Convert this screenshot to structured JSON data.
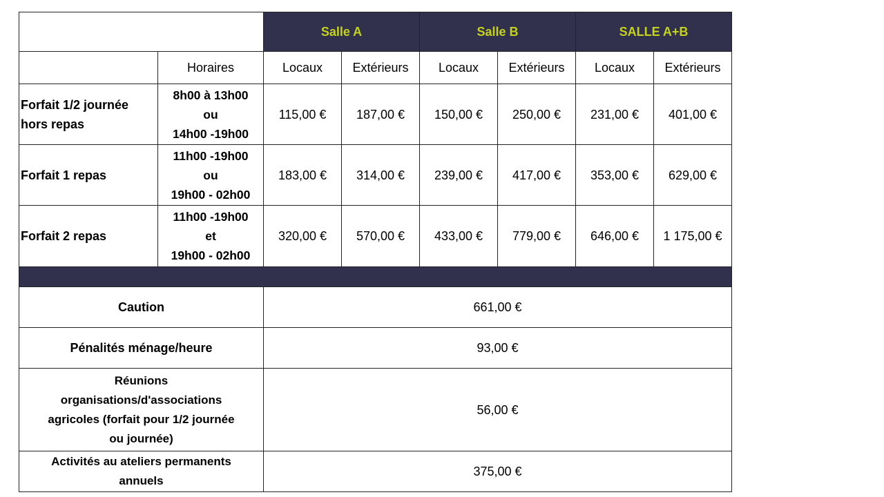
{
  "header": {
    "rooms": [
      "Salle A",
      "Salle B",
      "SALLE  A+B"
    ],
    "horaires_label": "Horaires",
    "sub": [
      "Locaux",
      "Extérieurs",
      "Locaux",
      "Extérieurs",
      "Locaux",
      "Extérieurs"
    ]
  },
  "rows": [
    {
      "label": "Forfait 1/2 journée\nhors repas",
      "horaires": "8h00 à 13h00\nou\n14h00 -19h00",
      "prices": [
        "115,00 €",
        "187,00 €",
        "150,00 €",
        "250,00 €",
        "231,00 €",
        "401,00 €"
      ]
    },
    {
      "label": "Forfait 1 repas",
      "horaires": "11h00 -19h00\nou\n19h00 - 02h00",
      "prices": [
        "183,00 €",
        "314,00 €",
        "239,00 €",
        "417,00 €",
        "353,00 €",
        "629,00 €"
      ]
    },
    {
      "label": "Forfait 2 repas",
      "horaires": "11h00 -19h00\net\n19h00 - 02h00",
      "prices": [
        "320,00 €",
        "570,00 €",
        "433,00 €",
        "779,00 €",
        "646,00 €",
        "1 175,00 €"
      ]
    }
  ],
  "extras": [
    {
      "label": "Caution",
      "value": "661,00 €"
    },
    {
      "label": "Pénalités ménage/heure",
      "value": "93,00 €"
    },
    {
      "label": "Réunions\norganisations/d'associations\nagricoles (forfait pour 1/2  journée\nou journée)",
      "value": "56,00 €"
    },
    {
      "label": "Activités au ateliers permanents\nannuels",
      "value": "375,00 €"
    }
  ],
  "colors": {
    "header_bg": "#31304d",
    "header_text": "#c5d41a"
  }
}
